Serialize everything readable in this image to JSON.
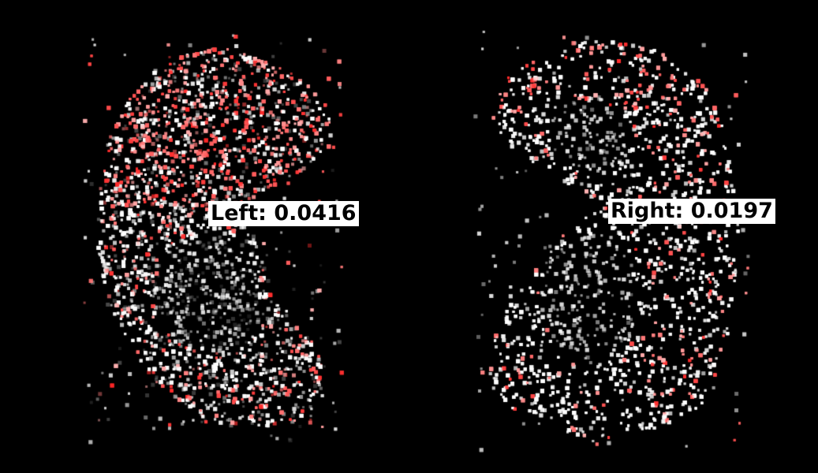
{
  "labels": {
    "left": "Left: 0.0416",
    "right": "Right: 0.0197"
  },
  "colors": {
    "background": "#000000",
    "point_base": "#ffffff",
    "point_highlight": "#ff3a3a",
    "label_background": "#ffffff",
    "label_text": "#000000"
  }
}
